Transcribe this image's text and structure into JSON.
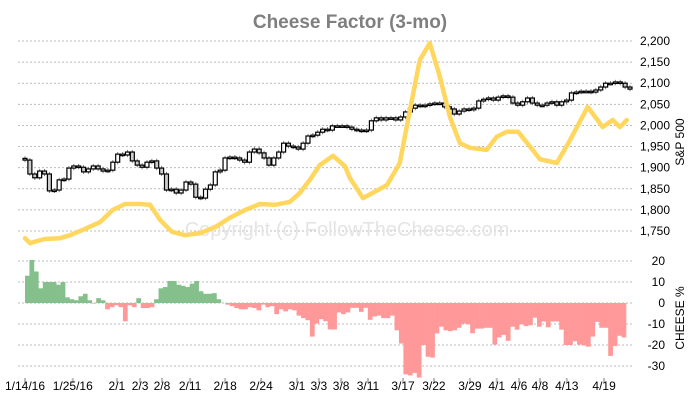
{
  "chart_data": {
    "type": "line",
    "title": "Cheese Factor (3-mo)",
    "watermark": "Copyright (c) FollowTheCheese.com",
    "colors": {
      "cheese_line": "#ffd75e",
      "positive_bar": "#85c08c",
      "negative_bar": "#ff9999",
      "candle": "#000000",
      "title": "#7f7f7f",
      "grid": "#bbbbbb"
    },
    "x_ticks": [
      {
        "label": "1/14/16",
        "index": 0
      },
      {
        "label": "1/25/16",
        "index": 10.5
      },
      {
        "label": "2/1",
        "index": 20.2
      },
      {
        "label": "2/3",
        "index": 25.3
      },
      {
        "label": "2/8",
        "index": 30.1
      },
      {
        "label": "2/11",
        "index": 36.3
      },
      {
        "label": "2/18",
        "index": 44
      },
      {
        "label": "2/24",
        "index": 51.9
      },
      {
        "label": "3/1",
        "index": 59.8
      },
      {
        "label": "3/3",
        "index": 64.6
      },
      {
        "label": "3/8",
        "index": 69.5
      },
      {
        "label": "3/11",
        "index": 75.4
      },
      {
        "label": "3/17",
        "index": 83.1
      },
      {
        "label": "3/22",
        "index": 89.9
      },
      {
        "label": "3/29",
        "index": 97.8
      },
      {
        "label": "4/1",
        "index": 103.7
      },
      {
        "label": "4/6",
        "index": 108.6
      },
      {
        "label": "4/8",
        "index": 113.2
      },
      {
        "label": "4/13",
        "index": 119.1
      },
      {
        "label": "4/19",
        "index": 127.3
      }
    ],
    "x_range": [
      0,
      133
    ],
    "price_panel": {
      "ylabel": "S&P 500",
      "ylim": [
        1750,
        2200
      ],
      "y_ticks": [
        "1,750",
        "1,800",
        "1,850",
        "1,900",
        "1,950",
        "2,000",
        "2,050",
        "2,100",
        "2,150",
        "2,200"
      ],
      "y_tick_values": [
        1750,
        1800,
        1850,
        1900,
        1950,
        2000,
        2050,
        2100,
        2150,
        2200
      ],
      "sp500_closes": [
        1918,
        1885,
        1876,
        1892,
        1885,
        1845,
        1847,
        1871,
        1873,
        1899,
        1904,
        1901,
        1890,
        1897,
        1904,
        1897,
        1892,
        1894,
        1913,
        1932,
        1930,
        1937,
        1916,
        1906,
        1901,
        1913,
        1916,
        1899,
        1885,
        1847,
        1849,
        1840,
        1847,
        1866,
        1861,
        1830,
        1828,
        1849,
        1859,
        1890,
        1894,
        1923,
        1925,
        1923,
        1918,
        1913,
        1937,
        1944,
        1935,
        1923,
        1906,
        1923,
        1937,
        1958,
        1951,
        1949,
        1944,
        1958,
        1975,
        1977,
        1984,
        1991,
        1989,
        1999,
        1999,
        1999,
        1996,
        1991,
        1989,
        1987,
        1989,
        2011,
        2018,
        2013,
        2018,
        2018,
        2013,
        2020,
        2032,
        2041,
        2048,
        2046,
        2048,
        2051,
        2053,
        2053,
        2044,
        2039,
        2027,
        2034,
        2039,
        2037,
        2041,
        2058,
        2062,
        2065,
        2060,
        2067,
        2070,
        2067,
        2053,
        2048,
        2056,
        2065,
        2053,
        2048,
        2048,
        2053,
        2056,
        2048,
        2056,
        2060,
        2077,
        2079,
        2081,
        2081,
        2079,
        2084,
        2091,
        2100,
        2100,
        2103,
        2100,
        2091,
        2086
      ],
      "cheese_line_scaled": [
        [
          0,
          1733
        ],
        [
          1.1,
          1721
        ],
        [
          2.6,
          1726
        ],
        [
          4.4,
          1731
        ],
        [
          7.7,
          1733
        ],
        [
          9.9,
          1740
        ],
        [
          13.2,
          1755
        ],
        [
          16.5,
          1771
        ],
        [
          19.3,
          1800
        ],
        [
          22,
          1814
        ],
        [
          25.3,
          1814
        ],
        [
          27.5,
          1812
        ],
        [
          29.7,
          1776
        ],
        [
          32.3,
          1748
        ],
        [
          35.2,
          1740
        ],
        [
          38.5,
          1745
        ],
        [
          41.8,
          1759
        ],
        [
          45,
          1781
        ],
        [
          48.4,
          1800
        ],
        [
          51.6,
          1814
        ],
        [
          54.9,
          1812
        ],
        [
          58.2,
          1819
        ],
        [
          60.4,
          1840
        ],
        [
          62.6,
          1871
        ],
        [
          64.8,
          1906
        ],
        [
          67.7,
          1928
        ],
        [
          70.3,
          1904
        ],
        [
          71.4,
          1876
        ],
        [
          74.3,
          1828
        ],
        [
          79.6,
          1859
        ],
        [
          82.4,
          1911
        ],
        [
          84.2,
          2013
        ],
        [
          86.8,
          2155
        ],
        [
          89,
          2195
        ],
        [
          91.2,
          2115
        ],
        [
          93.4,
          2020
        ],
        [
          95.6,
          1958
        ],
        [
          97.8,
          1947
        ],
        [
          101.5,
          1942
        ],
        [
          103.7,
          1973
        ],
        [
          105.9,
          1985
        ],
        [
          108.4,
          1985
        ],
        [
          111.6,
          1942
        ],
        [
          113.2,
          1920
        ],
        [
          116.9,
          1911
        ],
        [
          119.8,
          1965
        ],
        [
          123.7,
          2044
        ],
        [
          127,
          1996
        ],
        [
          129.2,
          2013
        ],
        [
          130.8,
          1996
        ],
        [
          132.3,
          2013
        ]
      ]
    },
    "cheese_panel": {
      "type": "bar",
      "ylabel": "CHEESE %",
      "ylim": [
        -35,
        22
      ],
      "y_ticks": [
        "-30",
        "-20",
        "-10",
        "0",
        "10",
        "20"
      ],
      "y_tick_values": [
        -30,
        -20,
        -10,
        0,
        10,
        20
      ],
      "values": [
        13,
        20.5,
        15,
        7,
        10,
        10,
        10,
        8.7,
        10,
        2.7,
        1.8,
        1.3,
        3.2,
        4.4,
        1.3,
        -0.3,
        2.3,
        1.3,
        -3,
        -2,
        -1.1,
        -2,
        -8.7,
        -1.1,
        -2,
        2.3,
        -2.4,
        -2.4,
        -2,
        1.8,
        7,
        7.6,
        10.5,
        10.5,
        8.7,
        8.2,
        7.6,
        9.2,
        10.5,
        5.6,
        4.4,
        4.4,
        4.7,
        1.8,
        0,
        -0.8,
        -1.5,
        -2.4,
        -3,
        -3,
        -2,
        -2.4,
        -3.5,
        -0.8,
        -2,
        -1.5,
        -5.3,
        -3,
        -4,
        -3,
        -3.5,
        -6,
        -7.2,
        -8.2,
        -16,
        -9.8,
        -7.7,
        -8.7,
        -12.6,
        -12.6,
        -4.5,
        -5.3,
        -4.5,
        -2.3,
        -2.3,
        -4.2,
        -2.3,
        -8,
        -6.4,
        -6,
        -7.2,
        -7.2,
        -6,
        -13,
        -19.3,
        -34,
        -34.5,
        -33.3,
        -35.5,
        -20,
        -25.6,
        -26,
        -14.5,
        -11.3,
        -13,
        -13.4,
        -13,
        -11.8,
        -9.8,
        -10.2,
        -14.4,
        -12.2,
        -12.2,
        -11.8,
        -11.8,
        -19.8,
        -16.4,
        -15.2,
        -18,
        -11.3,
        -12.7,
        -10.2,
        -11,
        -10.6,
        -7,
        -11.3,
        -8.8,
        -11.6,
        -8.8,
        -8.8,
        -12.7,
        -20,
        -20,
        -18.2,
        -19.8,
        -20.2,
        -20.8,
        -16,
        -9,
        -11.8,
        -11.8,
        -25.2,
        -20.5,
        -15.6,
        -16.4
      ]
    },
    "grid": true,
    "legend": "none"
  }
}
